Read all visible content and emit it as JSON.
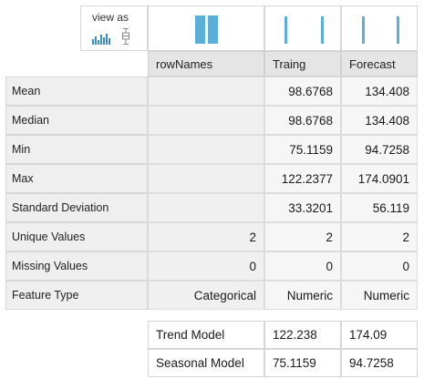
{
  "view_as": {
    "label": "view as",
    "icons": [
      "histogram-icon",
      "boxplot-icon"
    ]
  },
  "columns": [
    "rowNames",
    "Traing",
    "Forecast"
  ],
  "stats": [
    {
      "label": "Mean",
      "values": [
        "",
        "98.6768",
        "134.408"
      ]
    },
    {
      "label": "Median",
      "values": [
        "",
        "98.6768",
        "134.408"
      ]
    },
    {
      "label": "Min",
      "values": [
        "",
        "75.1159",
        "94.7258"
      ]
    },
    {
      "label": "Max",
      "values": [
        "",
        "122.2377",
        "174.0901"
      ]
    },
    {
      "label": "Standard Deviation",
      "values": [
        "",
        "33.3201",
        "56.119"
      ]
    },
    {
      "label": "Unique Values",
      "values": [
        "2",
        "2",
        "2"
      ]
    },
    {
      "label": "Missing Values",
      "values": [
        "0",
        "0",
        "0"
      ]
    },
    {
      "label": "Feature Type",
      "values": [
        "Categorical",
        "Numeric",
        "Numeric"
      ]
    }
  ],
  "models": [
    {
      "label": "Trend Model",
      "values": [
        "122.238",
        "174.09"
      ]
    },
    {
      "label": "Seasonal Model",
      "values": [
        "75.1159",
        "94.7258"
      ]
    }
  ],
  "colors": {
    "accent": "#5aaed8",
    "header_bg": "#e5e5e5",
    "label_bg": "#efefef"
  }
}
